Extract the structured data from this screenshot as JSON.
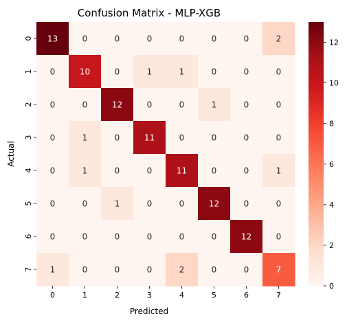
{
  "chart_data": {
    "type": "heatmap",
    "title": "Confusion Matrix - MLP-XGB",
    "xlabel": "Predicted",
    "ylabel": "Actual",
    "x_categories": [
      "0",
      "1",
      "2",
      "3",
      "4",
      "5",
      "6",
      "7"
    ],
    "y_categories": [
      "0",
      "1",
      "2",
      "3",
      "4",
      "5",
      "6",
      "7"
    ],
    "values": [
      [
        13,
        0,
        0,
        0,
        0,
        0,
        0,
        2
      ],
      [
        0,
        10,
        0,
        1,
        1,
        0,
        0,
        0
      ],
      [
        0,
        0,
        12,
        0,
        0,
        1,
        0,
        0
      ],
      [
        0,
        1,
        0,
        11,
        0,
        0,
        0,
        0
      ],
      [
        0,
        1,
        0,
        0,
        11,
        0,
        0,
        1
      ],
      [
        0,
        0,
        1,
        0,
        0,
        12,
        0,
        0
      ],
      [
        0,
        0,
        0,
        0,
        0,
        0,
        12,
        0
      ],
      [
        1,
        0,
        0,
        0,
        2,
        0,
        0,
        7
      ]
    ],
    "color_range": [
      0,
      13
    ],
    "colormap": "Reds",
    "colorbar_ticks": [
      "0",
      "2",
      "4",
      "6",
      "8",
      "10",
      "12"
    ],
    "grid": false,
    "legend": "colorbar-right"
  }
}
